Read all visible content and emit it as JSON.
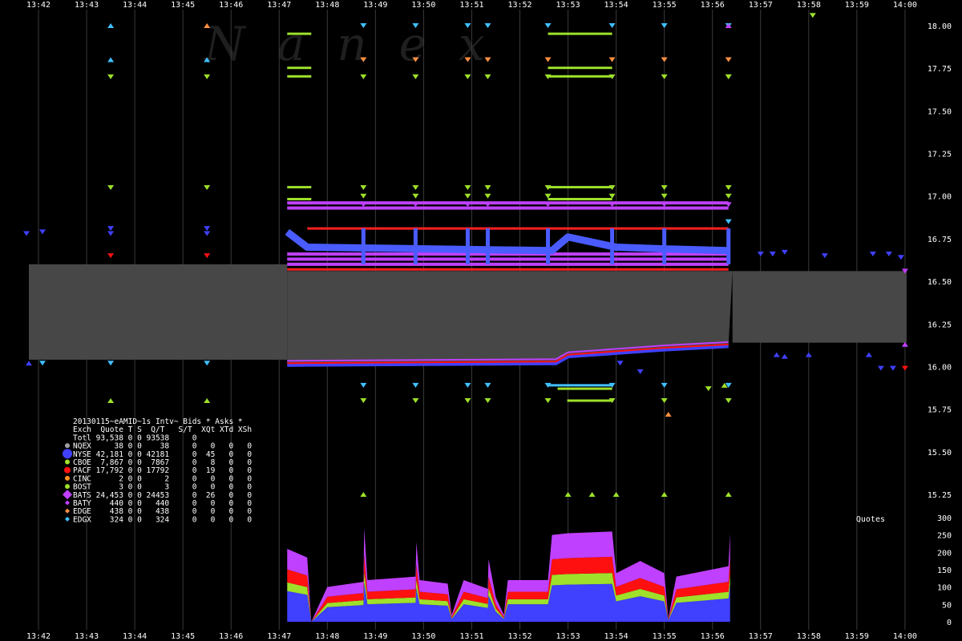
{
  "watermark": "Nanex",
  "chart_data": {
    "type": "scatter",
    "x_ticks": [
      "13:42",
      "13:43",
      "13:44",
      "13:45",
      "13:46",
      "13:47",
      "13:48",
      "13:49",
      "13:50",
      "13:51",
      "13:52",
      "13:53",
      "13:54",
      "13:55",
      "13:56",
      "13:57",
      "13:58",
      "13:59",
      "14:00"
    ],
    "y_ticks": [
      "18.00",
      "17.75",
      "17.50",
      "17.25",
      "17.00",
      "16.75",
      "16.50",
      "16.25",
      "16.00",
      "15.75",
      "15.50",
      "15.25"
    ],
    "y_range": [
      15.15,
      18.08
    ],
    "quotes_label": "Quotes",
    "quote_ticks": [
      "300",
      "250",
      "200",
      "150",
      "100",
      "50",
      "0"
    ],
    "quote_range": [
      0,
      300
    ],
    "nbbo_spread": {
      "start": "13:41:48",
      "end": "14:00:02",
      "low": 16.04,
      "high": 16.6,
      "high_after": 16.56,
      "low_after": 16.14,
      "break": "13:47:10",
      "break2": "13:56:25"
    },
    "ask_line": {
      "start": "13:47:35",
      "end": "13:56:20",
      "value": 16.81,
      "color": "#ff2020"
    },
    "ask_line2": {
      "start": "13:47:10",
      "end": "13:56:20",
      "value": 16.57,
      "color": "#ff2020"
    },
    "bid_path": [
      [
        "13:47:10",
        16.01
      ],
      [
        "13:52:45",
        16.02
      ],
      [
        "13:53:00",
        16.06
      ],
      [
        "13:54:00",
        16.08
      ],
      [
        "13:55:00",
        16.1
      ],
      [
        "13:56:20",
        16.12
      ]
    ],
    "nyse_ask_path": [
      [
        "13:47:10",
        16.79
      ],
      [
        "13:47:35",
        16.7
      ],
      [
        "13:52:40",
        16.68
      ],
      [
        "13:53:00",
        16.76
      ],
      [
        "13:54:00",
        16.7
      ],
      [
        "13:55:00",
        16.69
      ],
      [
        "13:56:20",
        16.68
      ]
    ],
    "bats_ask_levels": [
      16.6,
      16.63,
      16.66,
      16.93,
      16.96
    ],
    "bats_ask_span": [
      "13:47:10",
      "13:56:20"
    ],
    "cboe_levels": [
      17.05,
      16.98,
      17.95,
      17.75,
      17.7
    ],
    "cboe_spans": [
      [
        "13:47:10",
        "13:47:40"
      ],
      [
        "13:52:35",
        "13:53:55"
      ]
    ],
    "lower_levels": [
      15.89,
      15.87,
      15.8
    ],
    "lower_span": [
      "13:52:35",
      "13:53:55"
    ],
    "spikes": [
      "13:48:45",
      "13:49:50",
      "13:50:55",
      "13:51:20",
      "13:52:35",
      "13:53:55",
      "13:55:00",
      "13:56:20"
    ],
    "quote_volume": [
      [
        "13:47:10",
        210
      ],
      [
        "13:47:35",
        185
      ],
      [
        "13:47:40",
        0
      ],
      [
        "13:48:00",
        100
      ],
      [
        "13:48:45",
        115
      ],
      [
        "13:48:46",
        270
      ],
      [
        "13:48:50",
        120
      ],
      [
        "13:49:50",
        130
      ],
      [
        "13:49:51",
        230
      ],
      [
        "13:49:55",
        120
      ],
      [
        "13:50:30",
        110
      ],
      [
        "13:50:35",
        20
      ],
      [
        "13:50:50",
        120
      ],
      [
        "13:51:20",
        95
      ],
      [
        "13:51:21",
        180
      ],
      [
        "13:51:30",
        70
      ],
      [
        "13:51:40",
        20
      ],
      [
        "13:51:45",
        120
      ],
      [
        "13:52:35",
        120
      ],
      [
        "13:52:40",
        250
      ],
      [
        "13:53:00",
        255
      ],
      [
        "13:53:55",
        260
      ],
      [
        "13:54:00",
        140
      ],
      [
        "13:54:30",
        175
      ],
      [
        "13:55:00",
        140
      ],
      [
        "13:55:05",
        10
      ],
      [
        "13:55:15",
        130
      ],
      [
        "13:56:20",
        160
      ],
      [
        "13:56:22",
        255
      ]
    ],
    "volume_layers": [
      {
        "name": "NYSE",
        "color": "#4040ff",
        "frac": 0.42
      },
      {
        "name": "CBOE",
        "color": "#9ee02a",
        "frac": 0.12
      },
      {
        "name": "PACF",
        "color": "#ff1010",
        "frac": 0.18
      },
      {
        "name": "BATS",
        "color": "#c040ff",
        "frac": 0.28
      }
    ],
    "legend": {
      "header1": "20130115~eAMID~1s Intv~ Bids * Asks *",
      "header2": "Exch  Quote T S  Q/T   S/T  XQt XTd XSh",
      "total": "Totl 93,538 0 0 93538     0",
      "rows": [
        {
          "label": "NQEX     38 0 0    38     0   0   0   0",
          "color": "#a0a0a0",
          "shape": "circle",
          "size": 3
        },
        {
          "label": "NYSE 42,181 0 0 42181     0  45   0   0",
          "color": "#4040ff",
          "shape": "circle",
          "size": 6
        },
        {
          "label": "CBOE  7,867 0 0  7867     0   8   0   0",
          "color": "#9ee02a",
          "shape": "circle",
          "size": 3
        },
        {
          "label": "PACF 17,792 0 0 17792     0  19   0   0",
          "color": "#ff1010",
          "shape": "circle",
          "size": 4
        },
        {
          "label": "CINC      2 0 0     2     0   0   0   0",
          "color": "#ff9020",
          "shape": "circle",
          "size": 3
        },
        {
          "label": "BOST      3 0 0     3     0   0   0   0",
          "color": "#9ee02a",
          "shape": "circle",
          "size": 3
        },
        {
          "label": "BATS 24,453 0 0 24453     0  26   0   0",
          "color": "#c040ff",
          "shape": "diamond",
          "size": 6
        },
        {
          "label": "BATY    440 0 0   440     0   0   0   0",
          "color": "#c040ff",
          "shape": "diamond",
          "size": 3
        },
        {
          "label": "EDGE    438 0 0   438     0   0   0   0",
          "color": "#ff9040",
          "shape": "diamond",
          "size": 3
        },
        {
          "label": "EDGX    324 0 0   324     0   0   0   0",
          "color": "#40c0ff",
          "shape": "diamond",
          "size": 3
        }
      ]
    },
    "sparse_marks": [
      [
        "13:41:45",
        16.78,
        "#4040ff",
        "v"
      ],
      [
        "13:42:05",
        16.79,
        "#4040ff",
        "v"
      ],
      [
        "13:41:48",
        16.02,
        "#4040ff",
        "^"
      ],
      [
        "13:42:05",
        16.02,
        "#40c0ff",
        "v"
      ],
      [
        "13:43:30",
        18.0,
        "#40c0ff",
        "^"
      ],
      [
        "13:43:30",
        17.8,
        "#40c0ff",
        "^"
      ],
      [
        "13:43:30",
        17.7,
        "#9ee02a",
        "v"
      ],
      [
        "13:43:30",
        17.05,
        "#9ee02a",
        "v"
      ],
      [
        "13:43:30",
        16.81,
        "#4040ff",
        "v"
      ],
      [
        "13:43:30",
        16.78,
        "#4040ff",
        "v"
      ],
      [
        "13:43:30",
        16.65,
        "#ff1010",
        "v"
      ],
      [
        "13:43:30",
        16.02,
        "#40c0ff",
        "v"
      ],
      [
        "13:43:30",
        15.8,
        "#9ee02a",
        "^"
      ],
      [
        "13:45:30",
        18.0,
        "#ff9040",
        "^"
      ],
      [
        "13:45:30",
        17.8,
        "#40c0ff",
        "^"
      ],
      [
        "13:45:30",
        17.7,
        "#9ee02a",
        "v"
      ],
      [
        "13:45:30",
        17.05,
        "#9ee02a",
        "v"
      ],
      [
        "13:45:30",
        16.81,
        "#4040ff",
        "v"
      ],
      [
        "13:45:30",
        16.78,
        "#4040ff",
        "v"
      ],
      [
        "13:45:30",
        16.65,
        "#ff1010",
        "v"
      ],
      [
        "13:45:30",
        16.02,
        "#40c0ff",
        "v"
      ],
      [
        "13:45:30",
        15.8,
        "#9ee02a",
        "^"
      ],
      [
        "13:57:00",
        16.66,
        "#4040ff",
        "v"
      ],
      [
        "13:57:15",
        16.66,
        "#4040ff",
        "v"
      ],
      [
        "13:57:30",
        16.67,
        "#4040ff",
        "v"
      ],
      [
        "13:58:20",
        16.65,
        "#4040ff",
        "v"
      ],
      [
        "13:59:20",
        16.66,
        "#4040ff",
        "v"
      ],
      [
        "13:59:40",
        16.66,
        "#4040ff",
        "v"
      ],
      [
        "13:59:55",
        16.64,
        "#4040ff",
        "v"
      ],
      [
        "14:00:00",
        16.56,
        "#c040ff",
        "v"
      ],
      [
        "13:57:20",
        16.07,
        "#4040ff",
        "^"
      ],
      [
        "13:57:30",
        16.06,
        "#4040ff",
        "^"
      ],
      [
        "13:58:00",
        16.07,
        "#4040ff",
        "^"
      ],
      [
        "13:59:15",
        16.07,
        "#4040ff",
        "^"
      ],
      [
        "13:59:30",
        15.99,
        "#4040ff",
        "v"
      ],
      [
        "13:59:45",
        15.99,
        "#4040ff",
        "v"
      ],
      [
        "14:00:00",
        15.99,
        "#ff1010",
        "v"
      ],
      [
        "14:00:00",
        16.13,
        "#c040ff",
        "^"
      ],
      [
        "13:58:05",
        18.06,
        "#9ee02a",
        "v"
      ],
      [
        "13:55:05",
        15.72,
        "#ff9040",
        "^"
      ],
      [
        "13:54:05",
        16.02,
        "#4040ff",
        "v"
      ],
      [
        "13:54:30",
        15.97,
        "#4040ff",
        "v"
      ],
      [
        "13:48:45",
        15.25,
        "#9ee02a",
        "^"
      ],
      [
        "13:53:00",
        15.25,
        "#9ee02a",
        "^"
      ],
      [
        "13:53:30",
        15.25,
        "#9ee02a",
        "^"
      ],
      [
        "13:54:00",
        15.25,
        "#9ee02a",
        "^"
      ],
      [
        "13:55:00",
        15.25,
        "#9ee02a",
        "^"
      ],
      [
        "13:56:20",
        15.25,
        "#9ee02a",
        "^"
      ],
      [
        "13:56:20",
        17.7,
        "#9ee02a",
        "v"
      ],
      [
        "13:56:20",
        18.0,
        "#c040ff",
        "^"
      ],
      [
        "13:56:20",
        16.85,
        "#40c0ff",
        "v"
      ],
      [
        "13:56:15",
        15.89,
        "#9ee02a",
        "^"
      ],
      [
        "13:55:55",
        15.87,
        "#9ee02a",
        "v"
      ]
    ]
  }
}
